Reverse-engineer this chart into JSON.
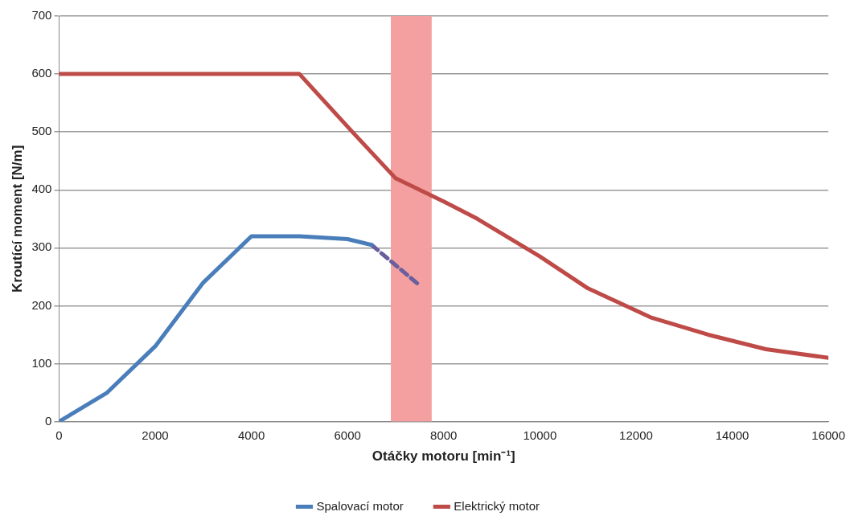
{
  "chart_data": {
    "type": "line",
    "xlabel": "Otáčky motoru [min⁻¹]",
    "ylabel": "Kroutící moment [N/m]",
    "xlim": [
      0,
      16000
    ],
    "xticks": [
      0,
      2000,
      4000,
      6000,
      8000,
      10000,
      12000,
      14000,
      16000
    ],
    "ylim": [
      0,
      700
    ],
    "yticks": [
      0,
      100,
      200,
      300,
      400,
      500,
      600,
      700
    ],
    "grid": "y",
    "legend": "bottom",
    "marker": "none",
    "series": [
      {
        "name": "Spalovací motor",
        "color": "#4a7ebb",
        "x": [
          0,
          1000,
          2000,
          3000,
          4000,
          5000,
          6000,
          6500
        ],
        "values": [
          0,
          50,
          130,
          240,
          320,
          320,
          315,
          305
        ]
      },
      {
        "color": "#6a5f9e",
        "line_style": "dashed",
        "x": [
          6500,
          7000,
          7500
        ],
        "values": [
          305,
          270,
          235
        ]
      },
      {
        "name": "Elektrický motor",
        "color": "#be4b48",
        "x": [
          0,
          5000,
          6100,
          7000,
          8000,
          8700,
          10000,
          11000,
          12300,
          13500,
          14700,
          16000
        ],
        "values": [
          600,
          600,
          500,
          420,
          380,
          350,
          285,
          230,
          180,
          150,
          125,
          110
        ]
      }
    ],
    "bands": [
      {
        "axis": "x",
        "from": 6900,
        "to": 7750,
        "color": "#f4a0a0"
      }
    ]
  }
}
